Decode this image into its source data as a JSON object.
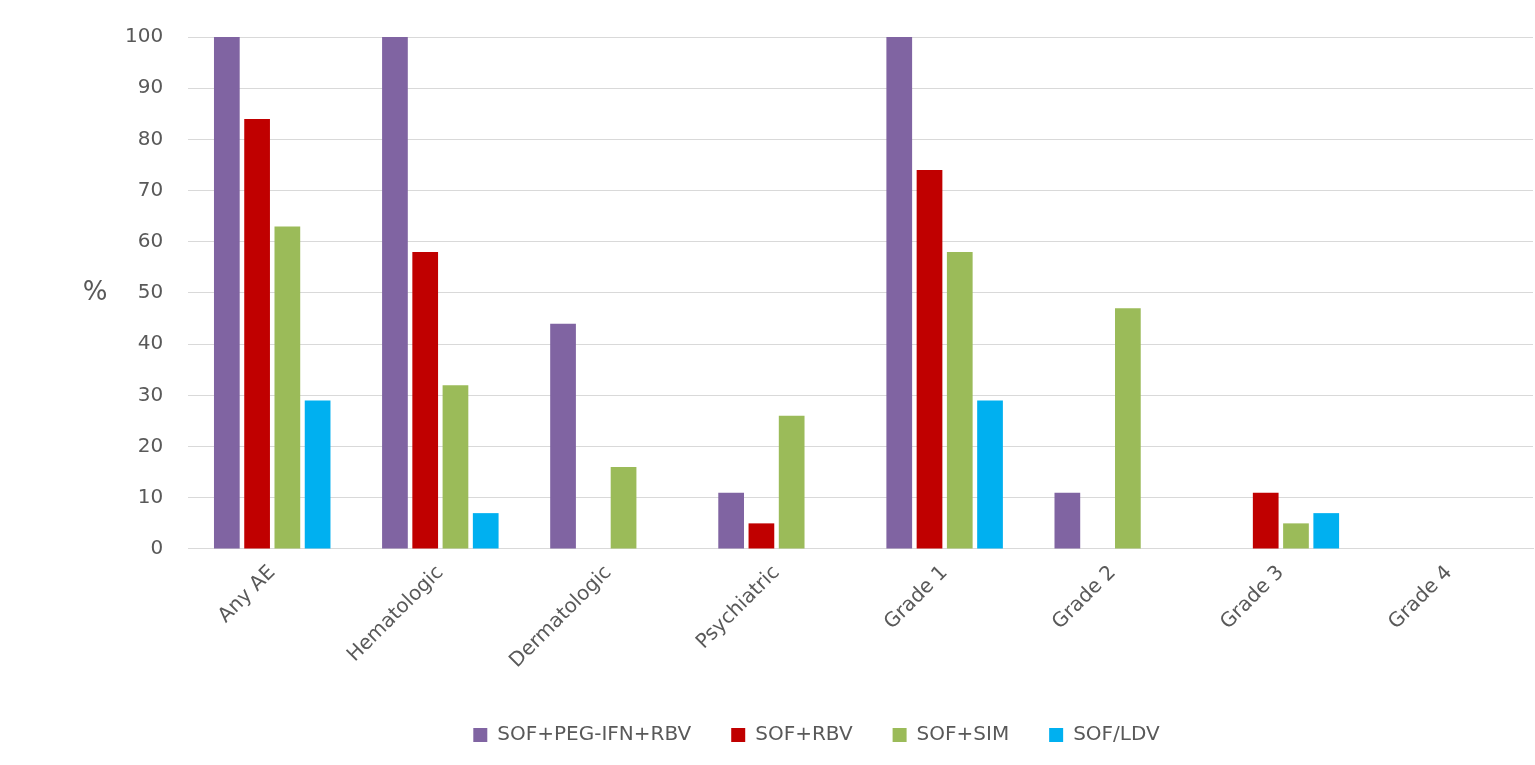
{
  "chart_data": {
    "type": "bar",
    "ylabel": "%",
    "categories": [
      "Any AE",
      "Hematologic",
      "Dermatologic",
      "Psychiatric",
      "Grade 1",
      "Grade 2",
      "Grade 3",
      "Grade 4"
    ],
    "series": [
      {
        "name": "SOF+PEG-IFN+RBV",
        "color": "#8064a2",
        "values": [
          100,
          100,
          44,
          11,
          100,
          11,
          0,
          0
        ]
      },
      {
        "name": "SOF+RBV",
        "color": "#c00000",
        "values": [
          84,
          58,
          0,
          5,
          74,
          0,
          11,
          0
        ]
      },
      {
        "name": "SOF+SIM",
        "color": "#9bbb59",
        "values": [
          63,
          32,
          16,
          26,
          58,
          47,
          5,
          0
        ]
      },
      {
        "name": "SOF/LDV",
        "color": "#00b0f0",
        "values": [
          29,
          7,
          0,
          0,
          29,
          0,
          7,
          0
        ]
      }
    ],
    "ylim": [
      0,
      100
    ],
    "yticks": [
      0,
      10,
      20,
      30,
      40,
      50,
      60,
      70,
      80,
      90,
      100
    ],
    "grid": "y",
    "legend": "bottom"
  }
}
